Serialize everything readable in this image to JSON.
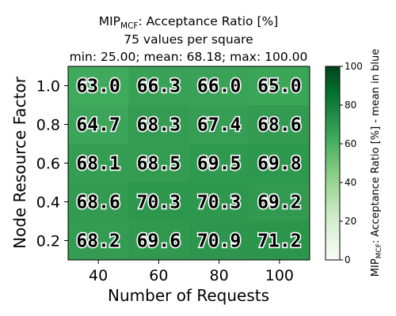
{
  "chart_data": {
    "type": "heatmap",
    "title": {
      "prefix": "MIP",
      "subscript": "MCF",
      "rest": ": Acceptance Ratio [%]",
      "line2": "75 values per square",
      "line3": "min: 25.00; mean: 68.18; max: 100.00"
    },
    "xlabel": "Number of Requests",
    "ylabel": "Node Resource Factor",
    "x_categories": [
      "40",
      "60",
      "80",
      "100"
    ],
    "y_categories": [
      "1.0",
      "0.8",
      "0.6",
      "0.4",
      "0.2"
    ],
    "values": [
      [
        63.0,
        66.3,
        66.0,
        65.0
      ],
      [
        64.7,
        68.3,
        67.4,
        68.6
      ],
      [
        68.1,
        68.5,
        69.5,
        69.8
      ],
      [
        68.6,
        70.3,
        70.3,
        69.2
      ],
      [
        68.2,
        69.6,
        70.9,
        71.2
      ]
    ],
    "value_labels": [
      [
        "63.0",
        "66.3",
        "66.0",
        "65.0"
      ],
      [
        "64.7",
        "68.3",
        "67.4",
        "68.6"
      ],
      [
        "68.1",
        "68.5",
        "69.5",
        "69.8"
      ],
      [
        "68.6",
        "70.3",
        "70.3",
        "69.2"
      ],
      [
        "68.2",
        "69.6",
        "70.9",
        "71.2"
      ]
    ],
    "colormap": "Greens",
    "colorbar": {
      "range": [
        0,
        100
      ],
      "ticks": [
        "0",
        "20",
        "40",
        "60",
        "80",
        "100"
      ],
      "label": {
        "prefix": "MIP",
        "subscript": "MCF",
        "rest": ": Acceptance Ratio [%] - mean in blue"
      }
    }
  }
}
